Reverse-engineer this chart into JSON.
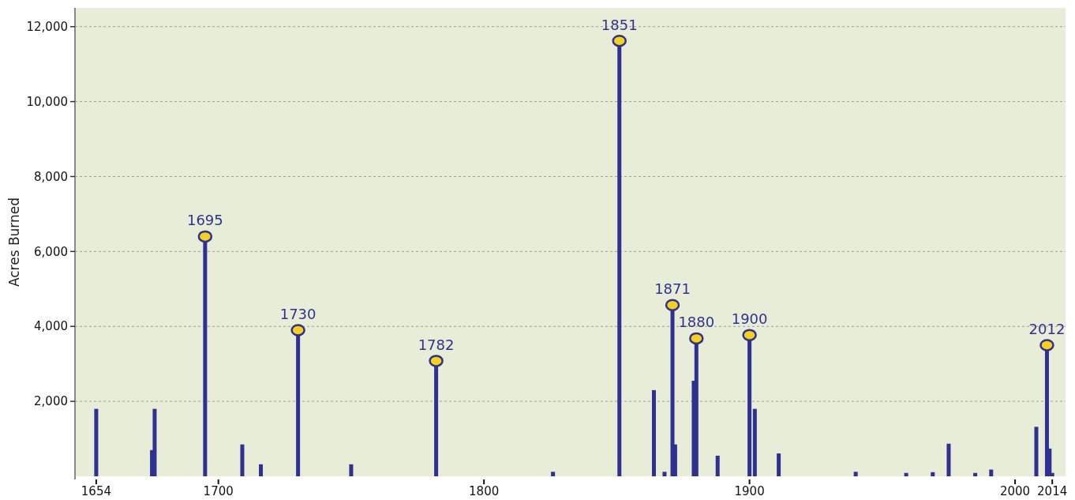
{
  "chart_data": {
    "type": "bar",
    "ylabel": "Acres Burned",
    "xlim": [
      1646,
      2019
    ],
    "xticks": [
      1654,
      1700,
      1800,
      1900,
      2000,
      2014
    ],
    "ylim": [
      0,
      12500
    ],
    "yticks": [
      {
        "value": 2000,
        "label": "2,000"
      },
      {
        "value": 4000,
        "label": "4,000"
      },
      {
        "value": 6000,
        "label": "6,000"
      },
      {
        "value": 8000,
        "label": "8,000"
      },
      {
        "value": 10000,
        "label": "10,000"
      },
      {
        "value": 12000,
        "label": "12,000"
      }
    ],
    "grid": "y",
    "series": [
      {
        "color": "#2e3192",
        "x": [
          1654,
          1675,
          1676,
          1709,
          1716,
          1750,
          1826,
          1864,
          1868,
          1872,
          1879,
          1888,
          1902,
          1911,
          1940,
          1959,
          1969,
          1975,
          1985,
          1991,
          2008,
          2013,
          2014
        ],
        "values": [
          1800,
          700,
          1800,
          850,
          320,
          320,
          120,
          2300,
          120,
          850,
          2550,
          550,
          1800,
          610,
          120,
          90,
          110,
          870,
          90,
          180,
          1320,
          740,
          90
        ]
      },
      {
        "type": "lollipop",
        "color": "#2e3192",
        "marker": "circle",
        "x": [
          1695,
          1730,
          1782,
          1851,
          1871,
          1880,
          1900,
          2012
        ],
        "values": [
          6400,
          3900,
          3080,
          11620,
          4570,
          3680,
          3770,
          3500
        ]
      }
    ],
    "annotations": [
      {
        "text": "1695",
        "x": 1695,
        "y": 6400
      },
      {
        "text": "1730",
        "x": 1730,
        "y": 3900
      },
      {
        "text": "1782",
        "x": 1782,
        "y": 3080
      },
      {
        "text": "1851",
        "x": 1851,
        "y": 11620
      },
      {
        "text": "1871",
        "x": 1871,
        "y": 4570
      },
      {
        "text": "1880",
        "x": 1880,
        "y": 3680
      },
      {
        "text": "1900",
        "x": 1900,
        "y": 3770
      },
      {
        "text": "2012",
        "x": 2012,
        "y": 3500
      }
    ]
  }
}
